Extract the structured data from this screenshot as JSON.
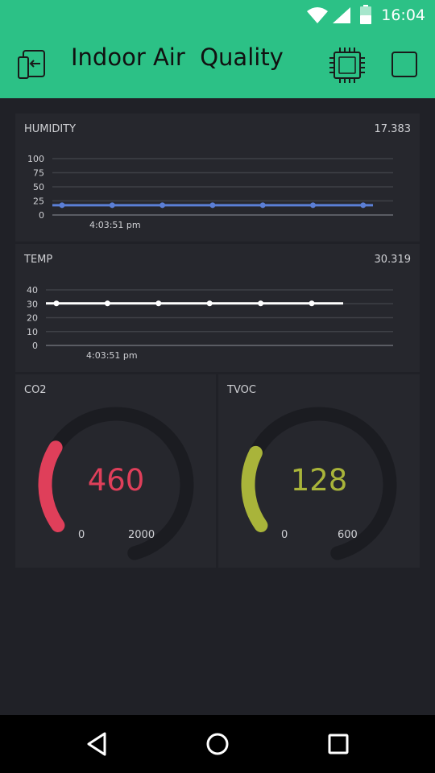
{
  "status": {
    "time": "16:04"
  },
  "header": {
    "title": "Indoor Air  Quality"
  },
  "colors": {
    "accent": "#2cc186",
    "humidity": "#5b7fd6",
    "temp": "#ffffff",
    "co2": "#df3f5a",
    "tvoc": "#a9b43a"
  },
  "humidity": {
    "label": "HUMIDITY",
    "value": "17.383",
    "y_ticks": [
      "100",
      "75",
      "50",
      "25",
      "0"
    ],
    "time_label": "4:03:51 pm"
  },
  "temp": {
    "label": "TEMP",
    "value": "30.319",
    "y_ticks": [
      "40",
      "30",
      "20",
      "10",
      "0"
    ],
    "time_label": "4:03:51 pm"
  },
  "co2": {
    "label": "CO2",
    "value": "460",
    "min": "0",
    "max": "2000",
    "fraction": 0.23
  },
  "tvoc": {
    "label": "TVOC",
    "value": "128",
    "min": "0",
    "max": "600",
    "fraction": 0.213
  },
  "chart_data": [
    {
      "type": "line",
      "series": [
        {
          "name": "HUMIDITY",
          "values": [
            17.4,
            17.4,
            17.4,
            17.4,
            17.4,
            17.4,
            17.4
          ]
        }
      ],
      "ylim": [
        0,
        100
      ]
    },
    {
      "type": "line",
      "series": [
        {
          "name": "TEMP",
          "values": [
            30.3,
            30.3,
            30.3,
            30.3,
            30.3,
            30.3
          ]
        }
      ],
      "ylim": [
        0,
        40
      ]
    }
  ]
}
